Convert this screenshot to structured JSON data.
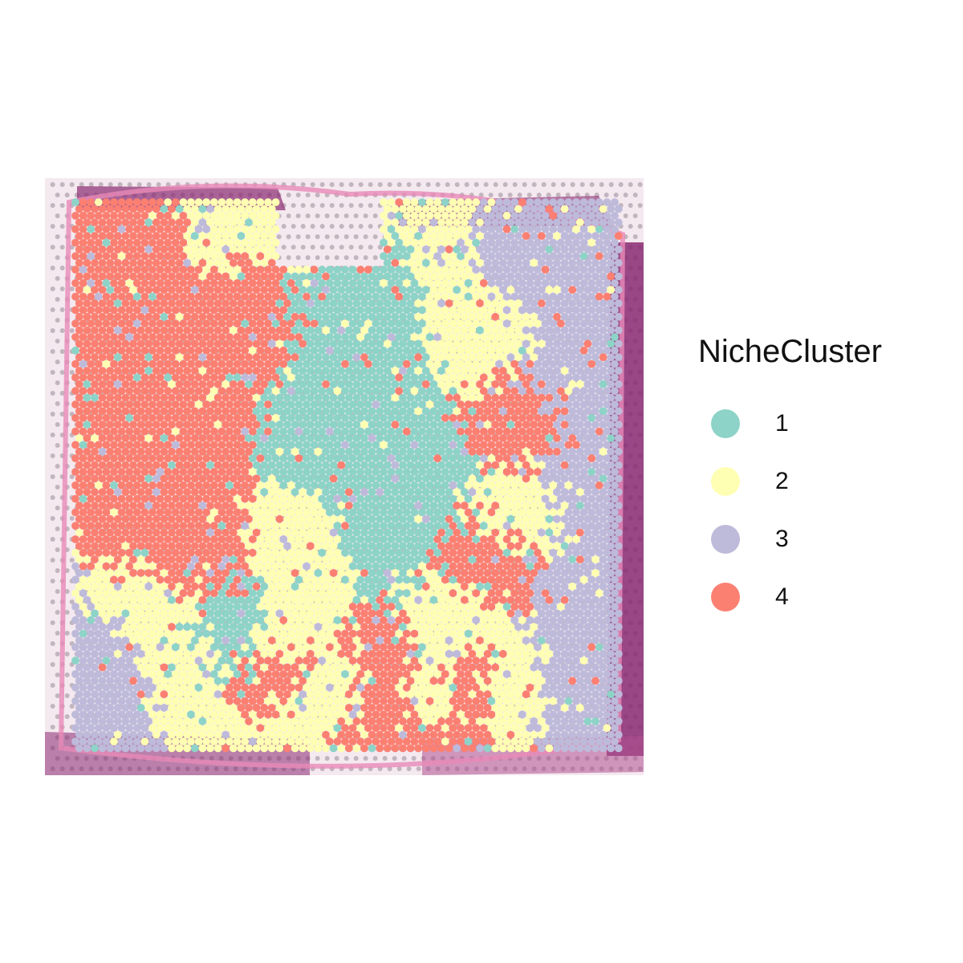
{
  "legend": {
    "title": "NicheCluster",
    "items": [
      {
        "label": "1",
        "color": "#8DD3C7"
      },
      {
        "label": "2",
        "color": "#FFFFB3"
      },
      {
        "label": "3",
        "color": "#BEBADA"
      },
      {
        "label": "4",
        "color": "#FB8072"
      }
    ]
  },
  "tissue_colors": {
    "background": "#f3e6ee",
    "stain_dark": "#8a2a72",
    "stain_pink": "#e88ab8",
    "fiducial_dot": "#9a8a98"
  }
}
